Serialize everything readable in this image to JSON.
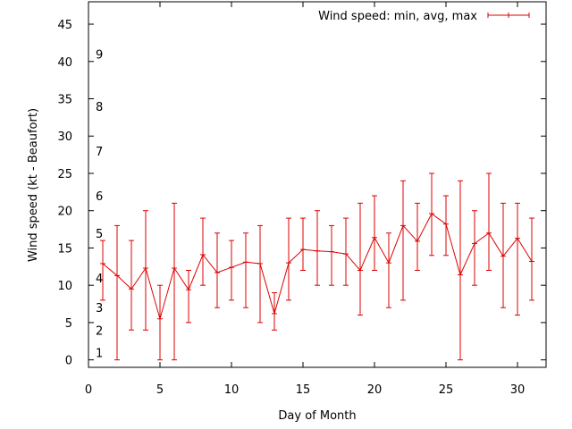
{
  "chart_data": {
    "type": "line",
    "xlabel": "Day of Month",
    "ylabel": "Wind speed (kt - Beaufort)",
    "xlim": [
      0,
      32
    ],
    "ylim": [
      -1,
      48
    ],
    "x_ticks": [
      0,
      5,
      10,
      15,
      20,
      25,
      30
    ],
    "y_ticks": [
      0,
      5,
      10,
      15,
      20,
      25,
      30,
      35,
      40,
      45
    ],
    "grid": false,
    "legend_position": "top-right",
    "beaufort_labels": [
      {
        "label": "1",
        "y": 1
      },
      {
        "label": "2",
        "y": 4
      },
      {
        "label": "3",
        "y": 7
      },
      {
        "label": "4",
        "y": 11
      },
      {
        "label": "5",
        "y": 17
      },
      {
        "label": "6",
        "y": 22
      },
      {
        "label": "7",
        "y": 28
      },
      {
        "label": "8",
        "y": 34
      },
      {
        "label": "9",
        "y": 41
      }
    ],
    "series": [
      {
        "name": "Wind speed: min, avg, max",
        "color": "#dd0000",
        "x": [
          1,
          2,
          3,
          4,
          5,
          6,
          7,
          8,
          9,
          10,
          11,
          12,
          13,
          14,
          15,
          16,
          17,
          18,
          19,
          20,
          21,
          22,
          23,
          24,
          25,
          26,
          27,
          28,
          29,
          30,
          31
        ],
        "min": [
          8,
          0,
          4,
          4,
          0,
          0,
          5,
          10,
          7,
          8,
          7,
          5,
          4,
          8,
          12,
          10,
          10,
          10,
          6,
          12,
          7,
          8,
          12,
          14,
          14,
          0,
          10,
          12,
          7,
          6,
          8
        ],
        "avg": [
          12.9,
          11.3,
          9.5,
          12.3,
          5.5,
          12.3,
          9.4,
          14.1,
          11.7,
          12.4,
          13.1,
          12.9,
          6.2,
          13,
          14.8,
          14.6,
          14.5,
          14.2,
          12,
          16.4,
          13,
          18,
          15.9,
          19.6,
          18.2,
          11.4,
          15.6,
          17,
          13.9,
          16.3,
          13.2
        ],
        "max": [
          16,
          18,
          16,
          20,
          10,
          21,
          12,
          19,
          17,
          16,
          17,
          18,
          9,
          19,
          19,
          20,
          18,
          19,
          21,
          22,
          17,
          24,
          21,
          25,
          22,
          24,
          20,
          25,
          21,
          21,
          19
        ]
      }
    ]
  }
}
